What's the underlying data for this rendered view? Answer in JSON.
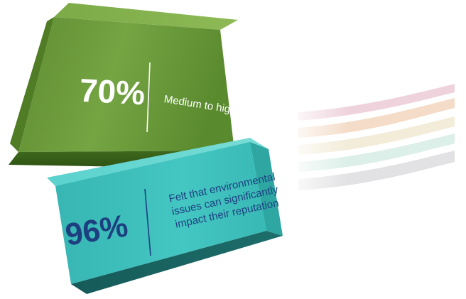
{
  "cards": [
    {
      "id": "green",
      "stat": "70%",
      "label": "Medium to high risk",
      "color": "#6a9a3a"
    },
    {
      "id": "teal",
      "stat": "96%",
      "label_lines": [
        "Felt that environmental",
        "issues can significantly",
        "impact their reputation"
      ],
      "color": "#3cc0bc"
    }
  ],
  "colors": {
    "stat_dark": "#1d3f80",
    "white": "#ffffff"
  }
}
